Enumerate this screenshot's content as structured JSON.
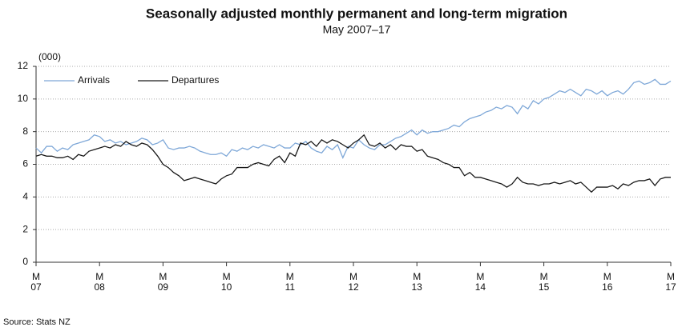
{
  "chart_data": {
    "type": "line",
    "title": "Seasonally adjusted monthly  permanent and long-term migration",
    "subtitle": "May 2007–17",
    "y_label": "(000)",
    "source": "Source: Stats NZ",
    "categories": [
      "M\n07",
      null,
      null,
      null,
      null,
      null,
      null,
      null,
      null,
      null,
      null,
      null,
      "M\n08",
      null,
      null,
      null,
      null,
      null,
      null,
      null,
      null,
      null,
      null,
      null,
      "M\n09",
      null,
      null,
      null,
      null,
      null,
      null,
      null,
      null,
      null,
      null,
      null,
      "M\n10",
      null,
      null,
      null,
      null,
      null,
      null,
      null,
      null,
      null,
      null,
      null,
      "M\n11",
      null,
      null,
      null,
      null,
      null,
      null,
      null,
      null,
      null,
      null,
      null,
      "M\n12",
      null,
      null,
      null,
      null,
      null,
      null,
      null,
      null,
      null,
      null,
      null,
      "M\n13",
      null,
      null,
      null,
      null,
      null,
      null,
      null,
      null,
      null,
      null,
      null,
      "M\n14",
      null,
      null,
      null,
      null,
      null,
      null,
      null,
      null,
      null,
      null,
      null,
      "M\n15",
      null,
      null,
      null,
      null,
      null,
      null,
      null,
      null,
      null,
      null,
      null,
      "M\n16",
      null,
      null,
      null,
      null,
      null,
      null,
      null,
      null,
      null,
      null,
      null,
      "M\n17"
    ],
    "series": [
      {
        "name": "Arrivals",
        "color": "#7fa8d8",
        "values": [
          7.0,
          6.7,
          7.1,
          7.1,
          6.8,
          7.0,
          6.9,
          7.2,
          7.3,
          7.4,
          7.5,
          7.8,
          7.7,
          7.4,
          7.5,
          7.3,
          7.4,
          7.2,
          7.3,
          7.4,
          7.6,
          7.5,
          7.2,
          7.3,
          7.5,
          7.0,
          6.9,
          7.0,
          7.0,
          7.1,
          7.0,
          6.8,
          6.7,
          6.6,
          6.6,
          6.7,
          6.5,
          6.9,
          6.8,
          7.0,
          6.9,
          7.1,
          7.0,
          7.2,
          7.1,
          7.0,
          7.2,
          7.0,
          7.0,
          7.3,
          7.2,
          7.4,
          7.0,
          6.8,
          6.7,
          7.1,
          6.9,
          7.2,
          6.4,
          7.1,
          7.0,
          7.5,
          7.2,
          7.0,
          6.9,
          7.2,
          7.2,
          7.4,
          7.6,
          7.7,
          7.9,
          8.1,
          7.8,
          8.1,
          7.9,
          8.0,
          8.0,
          8.1,
          8.2,
          8.4,
          8.3,
          8.6,
          8.8,
          8.9,
          9.0,
          9.2,
          9.3,
          9.5,
          9.4,
          9.6,
          9.5,
          9.1,
          9.6,
          9.4,
          9.9,
          9.7,
          10.0,
          10.1,
          10.3,
          10.5,
          10.4,
          10.6,
          10.4,
          10.2,
          10.6,
          10.5,
          10.3,
          10.5,
          10.2,
          10.4,
          10.5,
          10.3,
          10.6,
          11.0,
          11.1,
          10.9,
          11.0,
          11.2,
          10.9,
          10.9,
          11.1
        ]
      },
      {
        "name": "Departures",
        "color": "#1a1a1a",
        "values": [
          6.5,
          6.6,
          6.5,
          6.5,
          6.4,
          6.4,
          6.5,
          6.3,
          6.6,
          6.5,
          6.8,
          6.9,
          7.0,
          7.1,
          7.0,
          7.2,
          7.1,
          7.4,
          7.2,
          7.1,
          7.3,
          7.2,
          6.9,
          6.5,
          6.0,
          5.8,
          5.5,
          5.3,
          5.0,
          5.1,
          5.2,
          5.1,
          5.0,
          4.9,
          4.8,
          5.1,
          5.3,
          5.4,
          5.8,
          5.8,
          5.8,
          6.0,
          6.1,
          6.0,
          5.9,
          6.3,
          6.5,
          6.1,
          6.7,
          6.5,
          7.3,
          7.2,
          7.4,
          7.1,
          7.5,
          7.3,
          7.5,
          7.4,
          7.2,
          7.0,
          7.3,
          7.5,
          7.8,
          7.2,
          7.1,
          7.3,
          7.0,
          7.2,
          6.9,
          7.2,
          7.1,
          7.1,
          6.8,
          6.9,
          6.5,
          6.4,
          6.3,
          6.1,
          6.0,
          5.8,
          5.8,
          5.3,
          5.5,
          5.2,
          5.2,
          5.1,
          5.0,
          4.9,
          4.8,
          4.6,
          4.8,
          5.2,
          4.9,
          4.8,
          4.8,
          4.7,
          4.8,
          4.8,
          4.9,
          4.8,
          4.9,
          5.0,
          4.8,
          4.9,
          4.6,
          4.3,
          4.6,
          4.6,
          4.6,
          4.7,
          4.5,
          4.8,
          4.7,
          4.9,
          5.0,
          5.0,
          5.1,
          4.7,
          5.1,
          5.2,
          5.2
        ]
      }
    ],
    "ylim": [
      0,
      12
    ],
    "yticks": [
      0,
      2,
      4,
      6,
      8,
      10,
      12
    ],
    "grid": true,
    "legend": "top-left"
  }
}
